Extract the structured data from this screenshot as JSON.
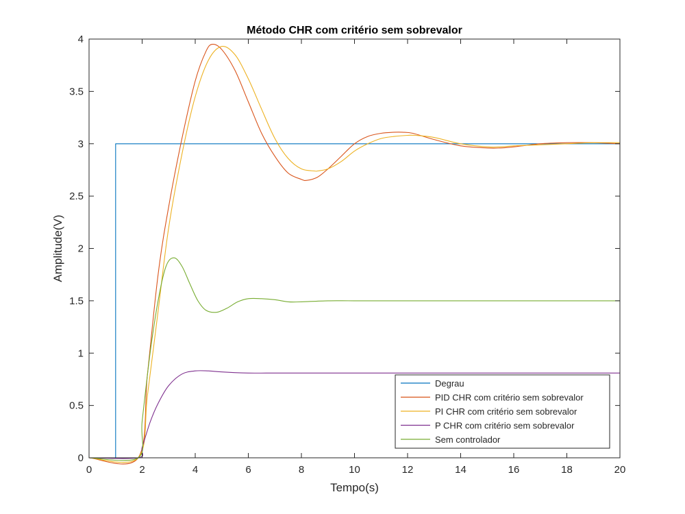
{
  "chart_data": {
    "type": "line",
    "title": "Método CHR com critério sem sobrevalor",
    "xlabel": "Tempo(s)",
    "ylabel": "Amplitude(V)",
    "xlim": [
      0,
      20
    ],
    "ylim": [
      0,
      4
    ],
    "xticks": [
      0,
      2,
      4,
      6,
      8,
      10,
      12,
      14,
      16,
      18,
      20
    ],
    "yticks": [
      0,
      0.5,
      1,
      1.5,
      2,
      2.5,
      3,
      3.5,
      4
    ],
    "grid": false,
    "legend_position": "bottom-right",
    "series": [
      {
        "name": "Degrau",
        "color": "#0072BD",
        "x": [
          0,
          1,
          1,
          20
        ],
        "y": [
          0,
          0,
          3,
          3
        ]
      },
      {
        "name": "PID CHR com critério sem sobrevalor",
        "color": "#D95319",
        "x": [
          0,
          1.85,
          2.2,
          2.6,
          3.0,
          3.5,
          4.0,
          4.4,
          4.65,
          5.0,
          5.5,
          6.0,
          6.5,
          7.0,
          7.5,
          8.0,
          8.2,
          8.6,
          9.0,
          9.5,
          10.0,
          10.5,
          11.0,
          11.5,
          11.8,
          12.2,
          13.0,
          14.0,
          15.0,
          15.5,
          16.0,
          17.0,
          18.0,
          19.0,
          20.0
        ],
        "y": [
          0,
          0,
          0.8,
          1.75,
          2.4,
          3.05,
          3.6,
          3.88,
          3.95,
          3.9,
          3.7,
          3.4,
          3.1,
          2.88,
          2.72,
          2.66,
          2.65,
          2.68,
          2.76,
          2.88,
          3.0,
          3.07,
          3.1,
          3.11,
          3.11,
          3.1,
          3.04,
          2.98,
          2.96,
          2.96,
          2.97,
          3.0,
          3.01,
          3.01,
          3.0
        ]
      },
      {
        "name": "PI CHR com critério sem sobrevalor",
        "color": "#EDB120",
        "x": [
          0,
          1.85,
          2.2,
          2.6,
          3.0,
          3.5,
          4.0,
          4.5,
          5.0,
          5.5,
          6.0,
          6.5,
          7.0,
          7.5,
          8.0,
          8.5,
          8.6,
          9.0,
          9.5,
          10.0,
          10.5,
          11.0,
          11.5,
          12.0,
          12.3,
          13.0,
          14.0,
          15.0,
          15.5,
          16.0,
          17.0,
          18.0,
          19.0,
          20.0
        ],
        "y": [
          0,
          0,
          0.6,
          1.4,
          2.2,
          2.9,
          3.45,
          3.8,
          3.93,
          3.85,
          3.62,
          3.33,
          3.05,
          2.86,
          2.76,
          2.74,
          2.74,
          2.76,
          2.83,
          2.93,
          3.0,
          3.05,
          3.07,
          3.08,
          3.08,
          3.06,
          3.0,
          2.97,
          2.97,
          2.98,
          2.99,
          3.0,
          3.01,
          3.01
        ]
      },
      {
        "name": "P CHR com critério sem sobrevalor",
        "color": "#7E2F8E",
        "x": [
          0,
          1.85,
          2.0,
          2.3,
          2.6,
          3.0,
          3.5,
          4.0,
          4.5,
          5.0,
          6.0,
          7.0,
          8.0,
          10.0,
          12.0,
          14.0,
          16.0,
          18.0,
          20.0
        ],
        "y": [
          0,
          0,
          0.1,
          0.34,
          0.52,
          0.69,
          0.8,
          0.83,
          0.83,
          0.82,
          0.81,
          0.81,
          0.81,
          0.81,
          0.81,
          0.81,
          0.81,
          0.81,
          0.81
        ]
      },
      {
        "name": "Sem controlador",
        "color": "#77AC30",
        "x": [
          0,
          1.85,
          2.0,
          2.3,
          2.6,
          2.9,
          3.2,
          3.5,
          3.8,
          4.1,
          4.4,
          4.8,
          5.2,
          5.6,
          6.0,
          6.5,
          7.0,
          7.5,
          8.0,
          9.0,
          10.0,
          12.0,
          14.0,
          16.0,
          18.0,
          20.0
        ],
        "y": [
          0,
          0,
          0.35,
          1.0,
          1.5,
          1.83,
          1.91,
          1.83,
          1.66,
          1.5,
          1.41,
          1.39,
          1.43,
          1.49,
          1.52,
          1.52,
          1.51,
          1.49,
          1.49,
          1.5,
          1.5,
          1.5,
          1.5,
          1.5,
          1.5,
          1.5
        ]
      }
    ]
  }
}
